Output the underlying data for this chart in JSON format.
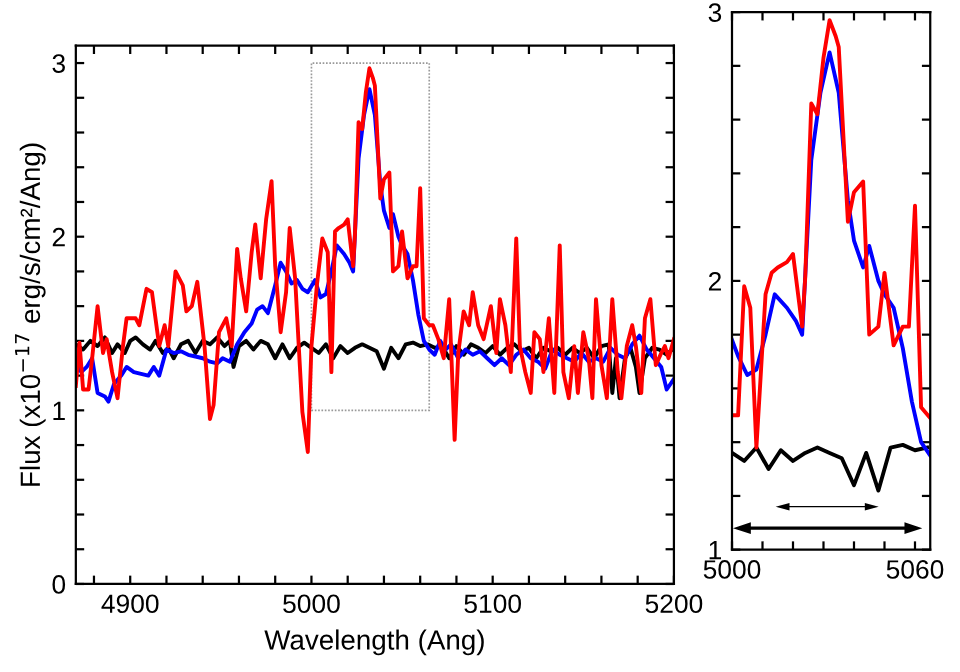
{
  "chart_data": [
    {
      "type": "line",
      "xlabel": "Wavelength (Ang)",
      "ylabel": "Flux (x10$^{−17}$ erg/s/cm²/Ang)",
      "xlim": [
        4870,
        5200
      ],
      "ylim": [
        0,
        3.1
      ],
      "xticks": [
        {
          "value": 4880,
          "label": null
        },
        4900,
        {
          "value": 4920,
          "label": null
        },
        {
          "value": 4940,
          "label": null
        },
        {
          "value": 4960,
          "label": null
        },
        {
          "value": 4980,
          "label": null
        },
        5000,
        {
          "value": 5020,
          "label": null
        },
        {
          "value": 5040,
          "label": null
        },
        {
          "value": 5060,
          "label": null
        },
        {
          "value": 5080,
          "label": null
        },
        5100,
        {
          "value": 5120,
          "label": null
        },
        {
          "value": 5140,
          "label": null
        },
        {
          "value": 5160,
          "label": null
        },
        {
          "value": 5180,
          "label": null
        },
        5200
      ],
      "yticks": [
        0,
        {
          "value": 0.2,
          "label": null
        },
        {
          "value": 0.4,
          "label": null
        },
        {
          "value": 0.6,
          "label": null
        },
        {
          "value": 0.8,
          "label": null
        },
        1,
        {
          "value": 1.2,
          "label": null
        },
        {
          "value": 1.4,
          "label": null
        },
        {
          "value": 1.6,
          "label": null
        },
        {
          "value": 1.8,
          "label": null
        },
        2,
        {
          "value": 2.2,
          "label": null
        },
        {
          "value": 2.4,
          "label": null
        },
        {
          "value": 2.6,
          "label": null
        },
        {
          "value": 2.8,
          "label": null
        },
        3
      ],
      "grid": false,
      "legend": false,
      "marker": "none",
      "line_style": "solid",
      "series": [
        {
          "color": "#000000",
          "x": [
            4870,
            4874,
            4878,
            4882,
            4886,
            4890,
            4893,
            4897,
            4900,
            4903,
            4907,
            4911,
            4914,
            4918,
            4921,
            4924,
            4928,
            4932,
            4936,
            4940,
            4944,
            4948,
            4952,
            4955,
            4957,
            4960,
            4964,
            4968,
            4972,
            4976,
            4980,
            4984,
            4988,
            4992,
            4996,
            5000,
            5004,
            5008,
            5012,
            5016,
            5020,
            5024,
            5028,
            5032,
            5036,
            5040,
            5044,
            5048,
            5052,
            5056,
            5060,
            5064,
            5068,
            5072,
            5076,
            5080,
            5084,
            5088,
            5092,
            5096,
            5100,
            5104,
            5108,
            5112,
            5116,
            5120,
            5124,
            5128,
            5132,
            5136,
            5140,
            5144,
            5148,
            5152,
            5156,
            5160,
            5164,
            5166,
            5168,
            5170,
            5173,
            5176,
            5179,
            5181,
            5184,
            5188,
            5192,
            5196,
            5200
          ],
          "values": [
            1.38,
            1.35,
            1.4,
            1.37,
            1.42,
            1.33,
            1.38,
            1.33,
            1.4,
            1.42,
            1.38,
            1.35,
            1.4,
            1.33,
            1.36,
            1.3,
            1.38,
            1.4,
            1.33,
            1.4,
            1.38,
            1.42,
            1.37,
            1.4,
            1.25,
            1.37,
            1.4,
            1.35,
            1.4,
            1.38,
            1.3,
            1.38,
            1.3,
            1.36,
            1.39,
            1.36,
            1.33,
            1.38,
            1.3,
            1.37,
            1.33,
            1.36,
            1.38,
            1.36,
            1.34,
            1.24,
            1.36,
            1.3,
            1.38,
            1.39,
            1.37,
            1.38,
            1.36,
            1.37,
            1.3,
            1.37,
            1.32,
            1.38,
            1.36,
            1.33,
            1.37,
            1.32,
            1.36,
            1.38,
            1.34,
            1.36,
            1.3,
            1.36,
            1.34,
            1.36,
            1.32,
            1.36,
            1.33,
            1.36,
            1.3,
            1.37,
            1.38,
            1.1,
            1.3,
            1.07,
            1.3,
            1.36,
            1.25,
            1.1,
            1.3,
            1.36,
            1.35,
            1.32,
            1.36
          ]
        },
        {
          "color": "#0000ff",
          "x": [
            4870,
            4873,
            4876,
            4879,
            4882,
            4886,
            4888,
            4891,
            4895,
            4898,
            4902,
            4906,
            4910,
            4913,
            4916,
            4920,
            4924,
            4928,
            4932,
            4936,
            4940,
            4944,
            4948,
            4951,
            4955,
            4959,
            4963,
            4967,
            4970,
            4973,
            4976,
            4980,
            4983,
            4986,
            4989,
            4992,
            4995,
            4998,
            5002,
            5005,
            5008,
            5011,
            5014,
            5018,
            5021,
            5023,
            5026,
            5029,
            5032,
            5035,
            5038,
            5040,
            5043,
            5045,
            5048,
            5050,
            5053,
            5056,
            5059,
            5062,
            5065,
            5068,
            5071,
            5074,
            5077,
            5081,
            5085,
            5089,
            5093,
            5097,
            5101,
            5105,
            5109,
            5113,
            5117,
            5121,
            5125,
            5129,
            5133,
            5137,
            5141,
            5145,
            5149,
            5153,
            5157,
            5161,
            5165,
            5169,
            5173,
            5177,
            5181,
            5185,
            5189,
            5193,
            5196,
            5200
          ],
          "values": [
            1.28,
            1.22,
            1.25,
            1.3,
            1.1,
            1.08,
            1.05,
            1.15,
            1.2,
            1.25,
            1.22,
            1.21,
            1.2,
            1.25,
            1.2,
            1.35,
            1.33,
            1.34,
            1.32,
            1.31,
            1.3,
            1.28,
            1.27,
            1.3,
            1.28,
            1.38,
            1.45,
            1.5,
            1.58,
            1.6,
            1.56,
            1.72,
            1.85,
            1.8,
            1.73,
            1.75,
            1.7,
            1.68,
            1.75,
            1.65,
            1.67,
            1.8,
            1.95,
            1.9,
            1.85,
            1.8,
            2.45,
            2.7,
            2.85,
            2.7,
            2.3,
            2.15,
            2.05,
            2.13,
            2.0,
            1.95,
            1.9,
            1.75,
            1.55,
            1.4,
            1.35,
            1.32,
            1.4,
            1.35,
            1.38,
            1.3,
            1.35,
            1.32,
            1.34,
            1.3,
            1.26,
            1.3,
            1.26,
            1.32,
            1.35,
            1.3,
            1.28,
            1.24,
            1.35,
            1.32,
            1.3,
            1.28,
            1.33,
            1.28,
            1.3,
            1.28,
            1.36,
            1.32,
            1.3,
            1.38,
            1.43,
            1.35,
            1.3,
            1.25,
            1.12,
            1.18
          ]
        },
        {
          "color": "#ff0000",
          "x": [
            4870,
            4872,
            4874,
            4877,
            4879,
            4882,
            4885,
            4887,
            4890,
            4893,
            4896,
            4898,
            4903,
            4905,
            4909,
            4912,
            4916,
            4919,
            4921,
            4925,
            4929,
            4931,
            4934,
            4937,
            4941,
            4944,
            4946,
            4949,
            4953,
            4956,
            4959,
            4961,
            4964,
            4967,
            4969,
            4972,
            4975,
            4978,
            4980,
            4983,
            4986,
            4988,
            4991,
            4993,
            4995,
            4998,
            5000,
            5003,
            5006,
            5009,
            5011,
            5013,
            5015,
            5018,
            5020,
            5023,
            5024,
            5026,
            5028,
            5030,
            5032,
            5034,
            5035,
            5038,
            5040,
            5043,
            5045,
            5048,
            5050,
            5053,
            5056,
            5058,
            5060,
            5062,
            5065,
            5067,
            5070,
            5073,
            5076,
            5079,
            5081,
            5084,
            5087,
            5089,
            5092,
            5095,
            5099,
            5102,
            5104,
            5107,
            5110,
            5113,
            5115,
            5118,
            5121,
            5123,
            5126,
            5128,
            5131,
            5134,
            5137,
            5139,
            5142,
            5145,
            5147,
            5150,
            5153,
            5155,
            5157,
            5160,
            5163,
            5166,
            5169,
            5171,
            5174,
            5177,
            5179,
            5182,
            5184,
            5187,
            5190,
            5193,
            5195,
            5197,
            5200
          ],
          "values": [
            1.14,
            1.39,
            1.12,
            1.12,
            1.3,
            1.6,
            1.33,
            1.41,
            1.22,
            1.07,
            1.37,
            1.53,
            1.53,
            1.49,
            1.7,
            1.68,
            1.37,
            1.49,
            1.37,
            1.8,
            1.72,
            1.57,
            1.6,
            1.74,
            1.37,
            0.95,
            1.03,
            1.45,
            1.53,
            1.37,
            1.93,
            1.76,
            1.57,
            1.91,
            2.07,
            1.76,
            2.1,
            2.32,
            1.83,
            1.45,
            1.68,
            2.05,
            1.76,
            1.37,
            0.99,
            0.76,
            1.37,
            1.72,
            1.99,
            1.91,
            1.22,
            2.03,
            2.05,
            2.07,
            2.1,
            1.83,
            2.01,
            2.66,
            2.62,
            2.83,
            2.97,
            2.91,
            2.87,
            2.22,
            2.33,
            2.37,
            1.8,
            1.83,
            2.03,
            1.76,
            1.83,
            1.83,
            2.28,
            1.53,
            1.49,
            1.49,
            1.41,
            1.3,
            1.64,
            0.83,
            1.33,
            1.57,
            1.49,
            1.68,
            1.49,
            1.41,
            1.6,
            1.33,
            1.64,
            1.49,
            1.22,
            1.99,
            1.37,
            1.22,
            1.1,
            1.45,
            1.41,
            1.22,
            1.53,
            1.1,
            1.95,
            1.22,
            1.07,
            1.37,
            1.1,
            1.45,
            1.3,
            1.07,
            1.64,
            1.26,
            1.07,
            1.64,
            1.22,
            1.07,
            1.37,
            1.49,
            1.37,
            1.1,
            1.53,
            1.64,
            1.26,
            1.33,
            1.37,
            1.3,
            1.41
          ]
        }
      ]
    },
    {
      "type": "line",
      "xlim": [
        5000,
        5065
      ],
      "ylim": [
        1,
        3
      ],
      "xticks": [
        5000,
        {
          "value": 5010,
          "label": null
        },
        {
          "value": 5020,
          "label": null
        },
        {
          "value": 5030,
          "label": null
        },
        {
          "value": 5040,
          "label": null
        },
        {
          "value": 5050,
          "label": null
        },
        5060
      ],
      "yticks": [
        1,
        {
          "value": 1.2,
          "label": null
        },
        {
          "value": 1.4,
          "label": null
        },
        {
          "value": 1.6,
          "label": null
        },
        {
          "value": 1.8,
          "label": null
        },
        2,
        {
          "value": 2.2,
          "label": null
        },
        {
          "value": 2.4,
          "label": null
        },
        {
          "value": 2.6,
          "label": null
        },
        {
          "value": 2.8,
          "label": null
        },
        3
      ],
      "grid": false,
      "legend": false,
      "marker": "none",
      "line_style": "solid",
      "series": [
        {
          "color": "#000000",
          "x": [
            5000,
            5004,
            5008,
            5012,
            5016,
            5020,
            5024,
            5028,
            5032,
            5036,
            5040,
            5044,
            5048,
            5052,
            5056,
            5060,
            5064
          ],
          "values": [
            1.36,
            1.33,
            1.38,
            1.3,
            1.37,
            1.33,
            1.36,
            1.38,
            1.36,
            1.34,
            1.24,
            1.36,
            1.22,
            1.38,
            1.39,
            1.37,
            1.38
          ]
        },
        {
          "color": "#0000ff",
          "x": [
            5000,
            5002,
            5005,
            5008,
            5011,
            5014,
            5018,
            5021,
            5023,
            5026,
            5029,
            5032,
            5035,
            5038,
            5040,
            5043,
            5045,
            5048,
            5050,
            5053,
            5056,
            5059,
            5062,
            5065
          ],
          "values": [
            1.78,
            1.72,
            1.65,
            1.67,
            1.8,
            1.95,
            1.9,
            1.85,
            1.8,
            2.45,
            2.7,
            2.85,
            2.7,
            2.3,
            2.15,
            2.05,
            2.13,
            2.0,
            1.95,
            1.9,
            1.75,
            1.55,
            1.4,
            1.35
          ]
        },
        {
          "color": "#ff0000",
          "x": [
            5000,
            5002,
            5004,
            5006,
            5008,
            5011,
            5013,
            5015,
            5018,
            5020,
            5023,
            5024,
            5026,
            5028,
            5030,
            5032,
            5034,
            5035,
            5038,
            5040,
            5043,
            5045,
            5048,
            5050,
            5053,
            5056,
            5058,
            5060,
            5062,
            5065
          ],
          "values": [
            1.5,
            1.5,
            1.98,
            1.9,
            1.38,
            1.95,
            2.03,
            2.05,
            2.07,
            2.1,
            1.83,
            2.01,
            2.66,
            2.62,
            2.83,
            2.97,
            2.91,
            2.87,
            2.22,
            2.33,
            2.37,
            1.8,
            1.83,
            2.03,
            1.76,
            1.83,
            1.83,
            2.28,
            1.53,
            1.49
          ]
        }
      ]
    }
  ]
}
